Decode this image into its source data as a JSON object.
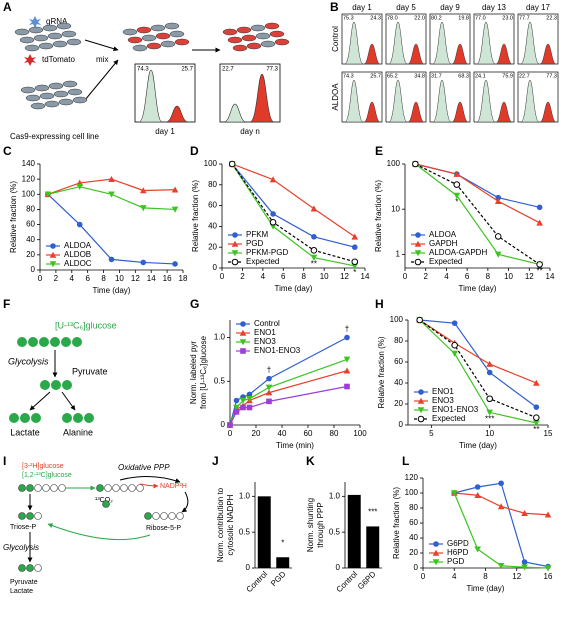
{
  "panel_a": {
    "label": "A",
    "grna": "gRNA",
    "tdtomato": "tdTomato",
    "cell_line": "Cas9-expressing cell line",
    "mix": "mix",
    "day_1": "day 1",
    "day_n": "day n",
    "hist_1": [
      "74.3",
      "25.7"
    ],
    "hist_n": [
      "22.7",
      "77.3"
    ]
  },
  "panel_b": {
    "label": "B",
    "days": [
      "day 1",
      "day 5",
      "day 9",
      "day 13",
      "day 17"
    ],
    "rows": [
      {
        "name": "Control",
        "values": [
          [
            "75.3",
            "24.3"
          ],
          [
            "78.0",
            "22.0"
          ],
          [
            "80.2",
            "19.8"
          ],
          [
            "77.0",
            "23.0"
          ],
          [
            "77.7",
            "22.3"
          ]
        ]
      },
      {
        "name": "ALDOA",
        "values": [
          [
            "74.3",
            "25.7"
          ],
          [
            "65.2",
            "34.8"
          ],
          [
            "31.7",
            "68.3"
          ],
          [
            "24.1",
            "75.9"
          ],
          [
            "22.7",
            "77.3"
          ]
        ]
      }
    ]
  },
  "panel_f": {
    "label": "F",
    "substrate": "[U-¹³C₆]glucose",
    "pathway": "Glycolysis",
    "pyruvate": "Pyruvate",
    "products": [
      "Lactate",
      "Alanine"
    ]
  },
  "panel_i": {
    "label": "I",
    "tracer_1": "[3-²H]glucose",
    "tracer_2": "[1,2-¹³C]glucose",
    "ppp": "Oxidative PPP",
    "nadph": "NADP²H",
    "co2": "¹³CO₂",
    "triose": "Triose-P",
    "ribose": "Ribose-5-P",
    "pathway": "Glycolysis",
    "pyruvate": "Pyruvate",
    "lactate": "Lactate"
  },
  "chart_data": [
    {
      "label": "C",
      "type": "line",
      "xlabel": "Time (day)",
      "ylabel": "Relative fraction (%)",
      "x": [
        1,
        5,
        9,
        13,
        17
      ],
      "series": [
        {
          "name": "ALDOA",
          "color": "#2f5fd0",
          "marker": "circle",
          "values": [
            100,
            60,
            14,
            10,
            8
          ]
        },
        {
          "name": "ALDOB",
          "color": "#e8402c",
          "marker": "triangle-up",
          "values": [
            100,
            115,
            120,
            105,
            106
          ]
        },
        {
          "name": "ALDOC",
          "color": "#3cc41f",
          "marker": "triangle-down",
          "values": [
            100,
            110,
            100,
            82,
            80
          ]
        }
      ],
      "xlim": [
        0,
        18
      ],
      "xticks": [
        0,
        2,
        4,
        6,
        8,
        10,
        12,
        14,
        16,
        18
      ],
      "ylim": [
        0,
        140
      ],
      "yticks": [
        0,
        20,
        40,
        60,
        80,
        100,
        120,
        140
      ],
      "legend": "bottom-left"
    },
    {
      "label": "D",
      "type": "line",
      "xlabel": "Time (day)",
      "ylabel": "Relative fraction (%)",
      "x": [
        1,
        5,
        9,
        13
      ],
      "series": [
        {
          "name": "PFKM",
          "color": "#2f5fd0",
          "marker": "circle",
          "values": [
            100,
            52,
            30,
            20
          ]
        },
        {
          "name": "PGD",
          "color": "#e8402c",
          "marker": "triangle-up",
          "values": [
            100,
            85,
            57,
            30
          ]
        },
        {
          "name": "PFKM-PGD",
          "color": "#3cc41f",
          "marker": "triangle-down",
          "values": [
            100,
            40,
            10,
            2
          ]
        },
        {
          "name": "Expected",
          "color": "#000000",
          "marker": "open-circle",
          "line_style": "dashed",
          "values": [
            100,
            44,
            17,
            6
          ]
        }
      ],
      "xlim": [
        0,
        14
      ],
      "xticks": [
        0,
        2,
        4,
        6,
        8,
        10,
        12,
        14
      ],
      "ylim": [
        0,
        100
      ],
      "yticks": [
        0,
        20,
        40,
        60,
        80,
        100
      ],
      "legend": "bottom-left",
      "annotations": [
        null,
        null,
        "**",
        "*"
      ]
    },
    {
      "label": "E",
      "type": "line",
      "xlabel": "Time (day)",
      "ylabel": "Relative fraction (%)",
      "x": [
        1,
        5,
        9,
        13
      ],
      "log": true,
      "series": [
        {
          "name": "ALDOA",
          "color": "#2f5fd0",
          "marker": "circle",
          "values": [
            100,
            60,
            18,
            11
          ]
        },
        {
          "name": "GAPDH",
          "color": "#e8402c",
          "marker": "triangle-up",
          "values": [
            100,
            60,
            15,
            5
          ]
        },
        {
          "name": "ALDOA-GAPDH",
          "color": "#3cc41f",
          "marker": "triangle-down",
          "values": [
            100,
            20,
            1,
            0.6
          ]
        },
        {
          "name": "Expected",
          "color": "#000000",
          "marker": "open-circle",
          "line_style": "dashed",
          "values": [
            100,
            35,
            2.5,
            0.6
          ]
        }
      ],
      "xlim": [
        0,
        14
      ],
      "xticks": [
        0,
        2,
        4,
        6,
        8,
        10,
        12,
        14
      ],
      "ylim": [
        0.5,
        100
      ],
      "yticks": [
        1,
        10,
        100
      ],
      "legend": "bottom-left",
      "annotations": [
        null,
        "*",
        null,
        "**"
      ]
    },
    {
      "label": "G",
      "type": "line",
      "xlabel": "Time (min)",
      "ylabel": [
        "Norm. labeled pyr",
        "from [U-¹³C₆]glucose"
      ],
      "x": [
        0,
        5,
        10,
        15,
        30,
        90
      ],
      "series": [
        {
          "name": "Control",
          "color": "#2f5fd0",
          "marker": "circle",
          "values": [
            0,
            0.28,
            0.32,
            0.35,
            0.53,
            1.0
          ]
        },
        {
          "name": "ENO1",
          "color": "#e8402c",
          "marker": "triangle-up",
          "values": [
            0,
            0.18,
            0.22,
            0.28,
            0.37,
            0.62
          ]
        },
        {
          "name": "ENO3",
          "color": "#3cc41f",
          "marker": "triangle-down",
          "values": [
            0,
            0.2,
            0.28,
            0.3,
            0.43,
            0.75
          ]
        },
        {
          "name": "ENO1-ENO3",
          "color": "#9b3fd6",
          "marker": "square",
          "values": [
            0,
            0.15,
            0.2,
            0.2,
            0.27,
            0.44
          ]
        }
      ],
      "xlim": [
        0,
        100
      ],
      "xticks": [
        0,
        20,
        40,
        60,
        80,
        100
      ],
      "ylim": [
        0,
        1.2
      ],
      "yticks": [
        0,
        0.5,
        {
          "value": 1,
          "label": "1.0"
        }
      ],
      "legend": "top-left",
      "annotations": [
        null,
        null,
        null,
        null,
        "†",
        "†"
      ],
      "annotation_position": "above"
    },
    {
      "label": "H",
      "type": "line",
      "xlabel": "Time (day)",
      "ylabel": "Relative fraction (%)",
      "x": [
        4,
        7,
        10,
        14
      ],
      "series": [
        {
          "name": "ENO1",
          "color": "#2f5fd0",
          "marker": "circle",
          "values": [
            100,
            97,
            50,
            17
          ]
        },
        {
          "name": "ENO3",
          "color": "#e8402c",
          "marker": "triangle-up",
          "values": [
            100,
            78,
            58,
            40
          ]
        },
        {
          "name": "ENO1-ENO3",
          "color": "#3cc41f",
          "marker": "triangle-down",
          "values": [
            100,
            68,
            12,
            2
          ]
        },
        {
          "name": "Expected",
          "color": "#000000",
          "marker": "open-circle",
          "line_style": "dashed",
          "values": [
            100,
            76,
            25,
            7
          ]
        }
      ],
      "xlim": [
        3,
        15
      ],
      "xticks": [
        5,
        10,
        15
      ],
      "ylim": [
        0,
        100
      ],
      "yticks": [
        0,
        20,
        40,
        60,
        80,
        100
      ],
      "legend": "bottom-left",
      "annotations": [
        null,
        null,
        "***",
        "**"
      ]
    },
    {
      "label": "J",
      "type": "bar",
      "ylabel": [
        "Norm. contribution to",
        "cytosolic NADPH"
      ],
      "categories": [
        "Control",
        "PGD"
      ],
      "values": [
        1.0,
        0.15
      ],
      "color": "#000000",
      "ylim": [
        0,
        1.2
      ],
      "yticks": [
        0,
        0.5,
        {
          "value": 1,
          "label": "1.0"
        }
      ],
      "annotations": [
        null,
        "*"
      ]
    },
    {
      "label": "K",
      "type": "bar",
      "ylabel": [
        "Norm. shunting",
        "through PPP"
      ],
      "categories": [
        "Control",
        "G6PD"
      ],
      "values": [
        1.02,
        0.58
      ],
      "color": "#000000",
      "ylim": [
        0,
        1.2
      ],
      "yticks": [
        0,
        0.5,
        {
          "value": 1,
          "label": "1.0"
        }
      ],
      "annotations": [
        null,
        "***"
      ]
    },
    {
      "label": "L",
      "type": "line",
      "xlabel": "Time (day)",
      "ylabel": "Relative fraction (%)",
      "x": [
        4,
        7,
        10,
        13,
        16
      ],
      "series": [
        {
          "name": "G6PD",
          "color": "#2f5fd0",
          "marker": "circle",
          "values": [
            100,
            108,
            113,
            8,
            2
          ]
        },
        {
          "name": "H6PD",
          "color": "#e8402c",
          "marker": "triangle-up",
          "values": [
            100,
            97,
            82,
            73,
            71
          ]
        },
        {
          "name": "PGD",
          "color": "#3cc41f",
          "marker": "triangle-down",
          "values": [
            100,
            25,
            3,
            1,
            0
          ]
        }
      ],
      "xlim": [
        0,
        16
      ],
      "xticks": [
        0,
        4,
        8,
        12,
        16
      ],
      "ylim": [
        0,
        120
      ],
      "yticks": [
        0,
        20,
        40,
        60,
        80,
        100,
        120
      ],
      "legend": "bottom-left"
    }
  ]
}
